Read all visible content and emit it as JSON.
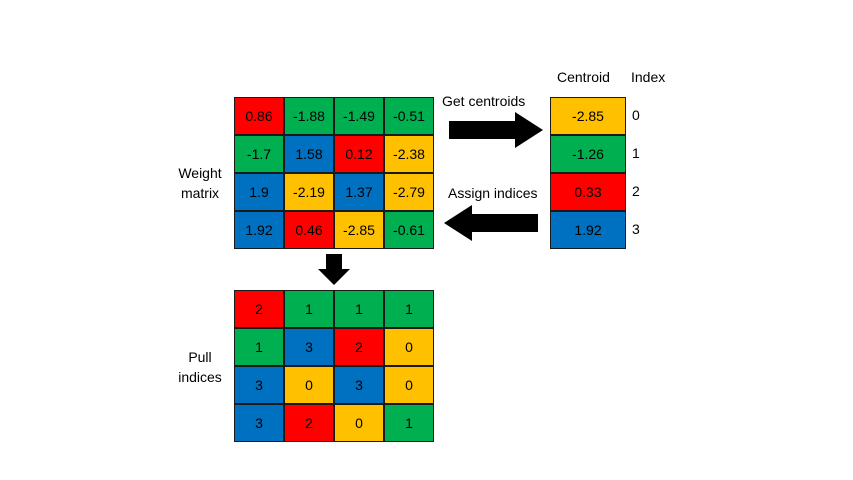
{
  "colors": {
    "red": "#ff0000",
    "green": "#00b050",
    "blue": "#0070c0",
    "yellow": "#ffc000"
  },
  "weight_matrix": {
    "label_line1": "Weight",
    "label_line2": "matrix",
    "rows": [
      [
        {
          "v": "0.86",
          "c": "red"
        },
        {
          "v": "-1.88",
          "c": "green"
        },
        {
          "v": "-1.49",
          "c": "green"
        },
        {
          "v": "-0.51",
          "c": "green"
        }
      ],
      [
        {
          "v": "-1.7",
          "c": "green"
        },
        {
          "v": "1.58",
          "c": "blue"
        },
        {
          "v": "0.12",
          "c": "red"
        },
        {
          "v": "-2.38",
          "c": "yellow"
        }
      ],
      [
        {
          "v": "1.9",
          "c": "blue"
        },
        {
          "v": "-2.19",
          "c": "yellow"
        },
        {
          "v": "1.37",
          "c": "blue"
        },
        {
          "v": "-2.79",
          "c": "yellow"
        }
      ],
      [
        {
          "v": "1.92",
          "c": "blue"
        },
        {
          "v": "0.46",
          "c": "red"
        },
        {
          "v": "-2.85",
          "c": "yellow"
        },
        {
          "v": "-0.61",
          "c": "green"
        }
      ]
    ]
  },
  "centroids": {
    "header_centroid": "Centroid",
    "header_index": "Index",
    "items": [
      {
        "v": "-2.85",
        "c": "yellow",
        "index": "0"
      },
      {
        "v": "-1.26",
        "c": "green",
        "index": "1"
      },
      {
        "v": "0.33",
        "c": "red",
        "index": "2"
      },
      {
        "v": "1.92",
        "c": "blue",
        "index": "3"
      }
    ]
  },
  "arrows": {
    "get_centroids": "Get centroids",
    "assign_indices": "Assign indices"
  },
  "pull_indices": {
    "label_line1": "Pull",
    "label_line2": "indices",
    "rows": [
      [
        {
          "v": "2",
          "c": "red"
        },
        {
          "v": "1",
          "c": "green"
        },
        {
          "v": "1",
          "c": "green"
        },
        {
          "v": "1",
          "c": "green"
        }
      ],
      [
        {
          "v": "1",
          "c": "green"
        },
        {
          "v": "3",
          "c": "blue"
        },
        {
          "v": "2",
          "c": "red"
        },
        {
          "v": "0",
          "c": "yellow"
        }
      ],
      [
        {
          "v": "3",
          "c": "blue"
        },
        {
          "v": "0",
          "c": "yellow"
        },
        {
          "v": "3",
          "c": "blue"
        },
        {
          "v": "0",
          "c": "yellow"
        }
      ],
      [
        {
          "v": "3",
          "c": "blue"
        },
        {
          "v": "2",
          "c": "red"
        },
        {
          "v": "0",
          "c": "yellow"
        },
        {
          "v": "1",
          "c": "green"
        }
      ]
    ]
  }
}
